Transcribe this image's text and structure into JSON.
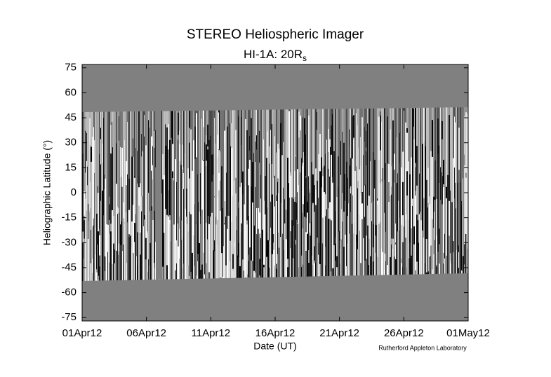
{
  "chart_data": {
    "type": "image",
    "title": "STEREO Heliospheric Imager",
    "subtitle": {
      "text": "HI-1A: 20R",
      "subscript": "s"
    },
    "y_label": "Heliographic Latitude (°)",
    "x_label": "Date (UT)",
    "credit": "Rutherford Appleton Laboratory",
    "xticks": [
      "01Apr12",
      "06Apr12",
      "11Apr12",
      "16Apr12",
      "21Apr12",
      "26Apr12",
      "01May12"
    ],
    "ylim": [
      -77,
      77
    ],
    "yticks": [
      75,
      60,
      45,
      30,
      15,
      0,
      -15,
      -30,
      -45,
      -60,
      -75
    ]
  }
}
